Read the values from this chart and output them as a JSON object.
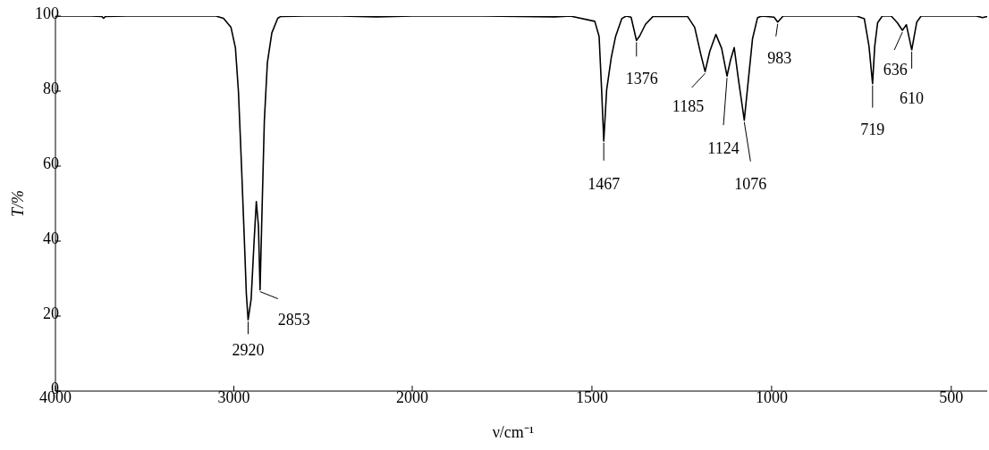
{
  "chart_data": [
    {
      "type": "line",
      "ylabel": "T/%",
      "x": [
        4000,
        3800,
        3740,
        3730,
        3720,
        3600,
        3400,
        3200,
        3100,
        3058,
        3016,
        2991,
        2974,
        2957,
        2941,
        2930,
        2920,
        2903,
        2886,
        2874,
        2862,
        2853,
        2842,
        2829,
        2812,
        2787,
        2754,
        2737,
        2600,
        2400,
        2200,
        2000
      ],
      "series": [
        {
          "color": "#000000",
          "values": [
            100,
            100,
            99.9,
            99.4,
            99.9,
            100,
            100,
            100,
            100,
            99.4,
            97,
            91.5,
            79.7,
            60,
            40.3,
            26,
            19,
            24.5,
            40.3,
            50.5,
            44,
            27,
            48,
            72,
            87.6,
            95.5,
            99.4,
            99.9,
            100,
            100,
            99.8,
            100
          ]
        }
      ],
      "xlim": [
        4000,
        2000
      ],
      "xticks": [
        4000,
        3000,
        2000
      ],
      "ylim": [
        0,
        100
      ],
      "yticks": [
        0,
        20,
        40,
        60,
        80,
        100
      ],
      "marker": "none",
      "line_style": "solid",
      "grid": false,
      "legend": false,
      "annotations": [
        {
          "text": "2920",
          "x": 2920,
          "y": 19
        },
        {
          "text": "2853",
          "x": 2853,
          "y": 27
        }
      ]
    },
    {
      "type": "line",
      "xlabel": "ν/cm⁻¹",
      "x": [
        2000,
        1800,
        1603,
        1560,
        1492,
        1480,
        1473,
        1467,
        1459,
        1446,
        1434,
        1417,
        1405,
        1391,
        1376,
        1367,
        1351,
        1330,
        1234,
        1214,
        1197,
        1185,
        1172,
        1155,
        1139,
        1124,
        1114,
        1104,
        1093,
        1076,
        1064,
        1053,
        1039,
        1027,
        993,
        983,
        968,
        763,
        742,
        729,
        719,
        713,
        705,
        692,
        667,
        650,
        636,
        625,
        610,
        596,
        584,
        447,
        430,
        413,
        400
      ],
      "series": [
        {
          "color": "#000000",
          "values": [
            100,
            100,
            99.8,
            100,
            98.6,
            94.6,
            80.3,
            66.7,
            80.3,
            89,
            94.6,
            99.3,
            100,
            99.7,
            93.5,
            94.7,
            97.8,
            99.9,
            99.9,
            97,
            89.8,
            85.2,
            90.6,
            95.1,
            91.4,
            84,
            88.4,
            91.6,
            83.6,
            72.2,
            83.6,
            94,
            99.6,
            100,
            99.7,
            98.4,
            100,
            100,
            99.3,
            92,
            82,
            92,
            98.2,
            100,
            100,
            98.2,
            96.2,
            97.7,
            91,
            98.4,
            100,
            100,
            100,
            99.6,
            99.9
          ]
        }
      ],
      "xlim": [
        2000,
        400
      ],
      "xticks": [
        1500,
        1000,
        500
      ],
      "ylim": [
        0,
        100
      ],
      "tick_labels": "x",
      "marker": "none",
      "line_style": "solid",
      "grid": false,
      "legend": false,
      "annotations": [
        {
          "text": "1467",
          "x": 1467,
          "y": 66.7
        },
        {
          "text": "1376",
          "x": 1376,
          "y": 93.5
        },
        {
          "text": "1185",
          "x": 1185,
          "y": 85.2
        },
        {
          "text": "1124",
          "x": 1124,
          "y": 84
        },
        {
          "text": "1076",
          "x": 1076,
          "y": 72.2
        },
        {
          "text": "983",
          "x": 983,
          "y": 98.4
        },
        {
          "text": "719",
          "x": 719,
          "y": 82
        },
        {
          "text": "636",
          "x": 636,
          "y": 96.2
        },
        {
          "text": "610",
          "x": 610,
          "y": 91
        }
      ]
    }
  ]
}
